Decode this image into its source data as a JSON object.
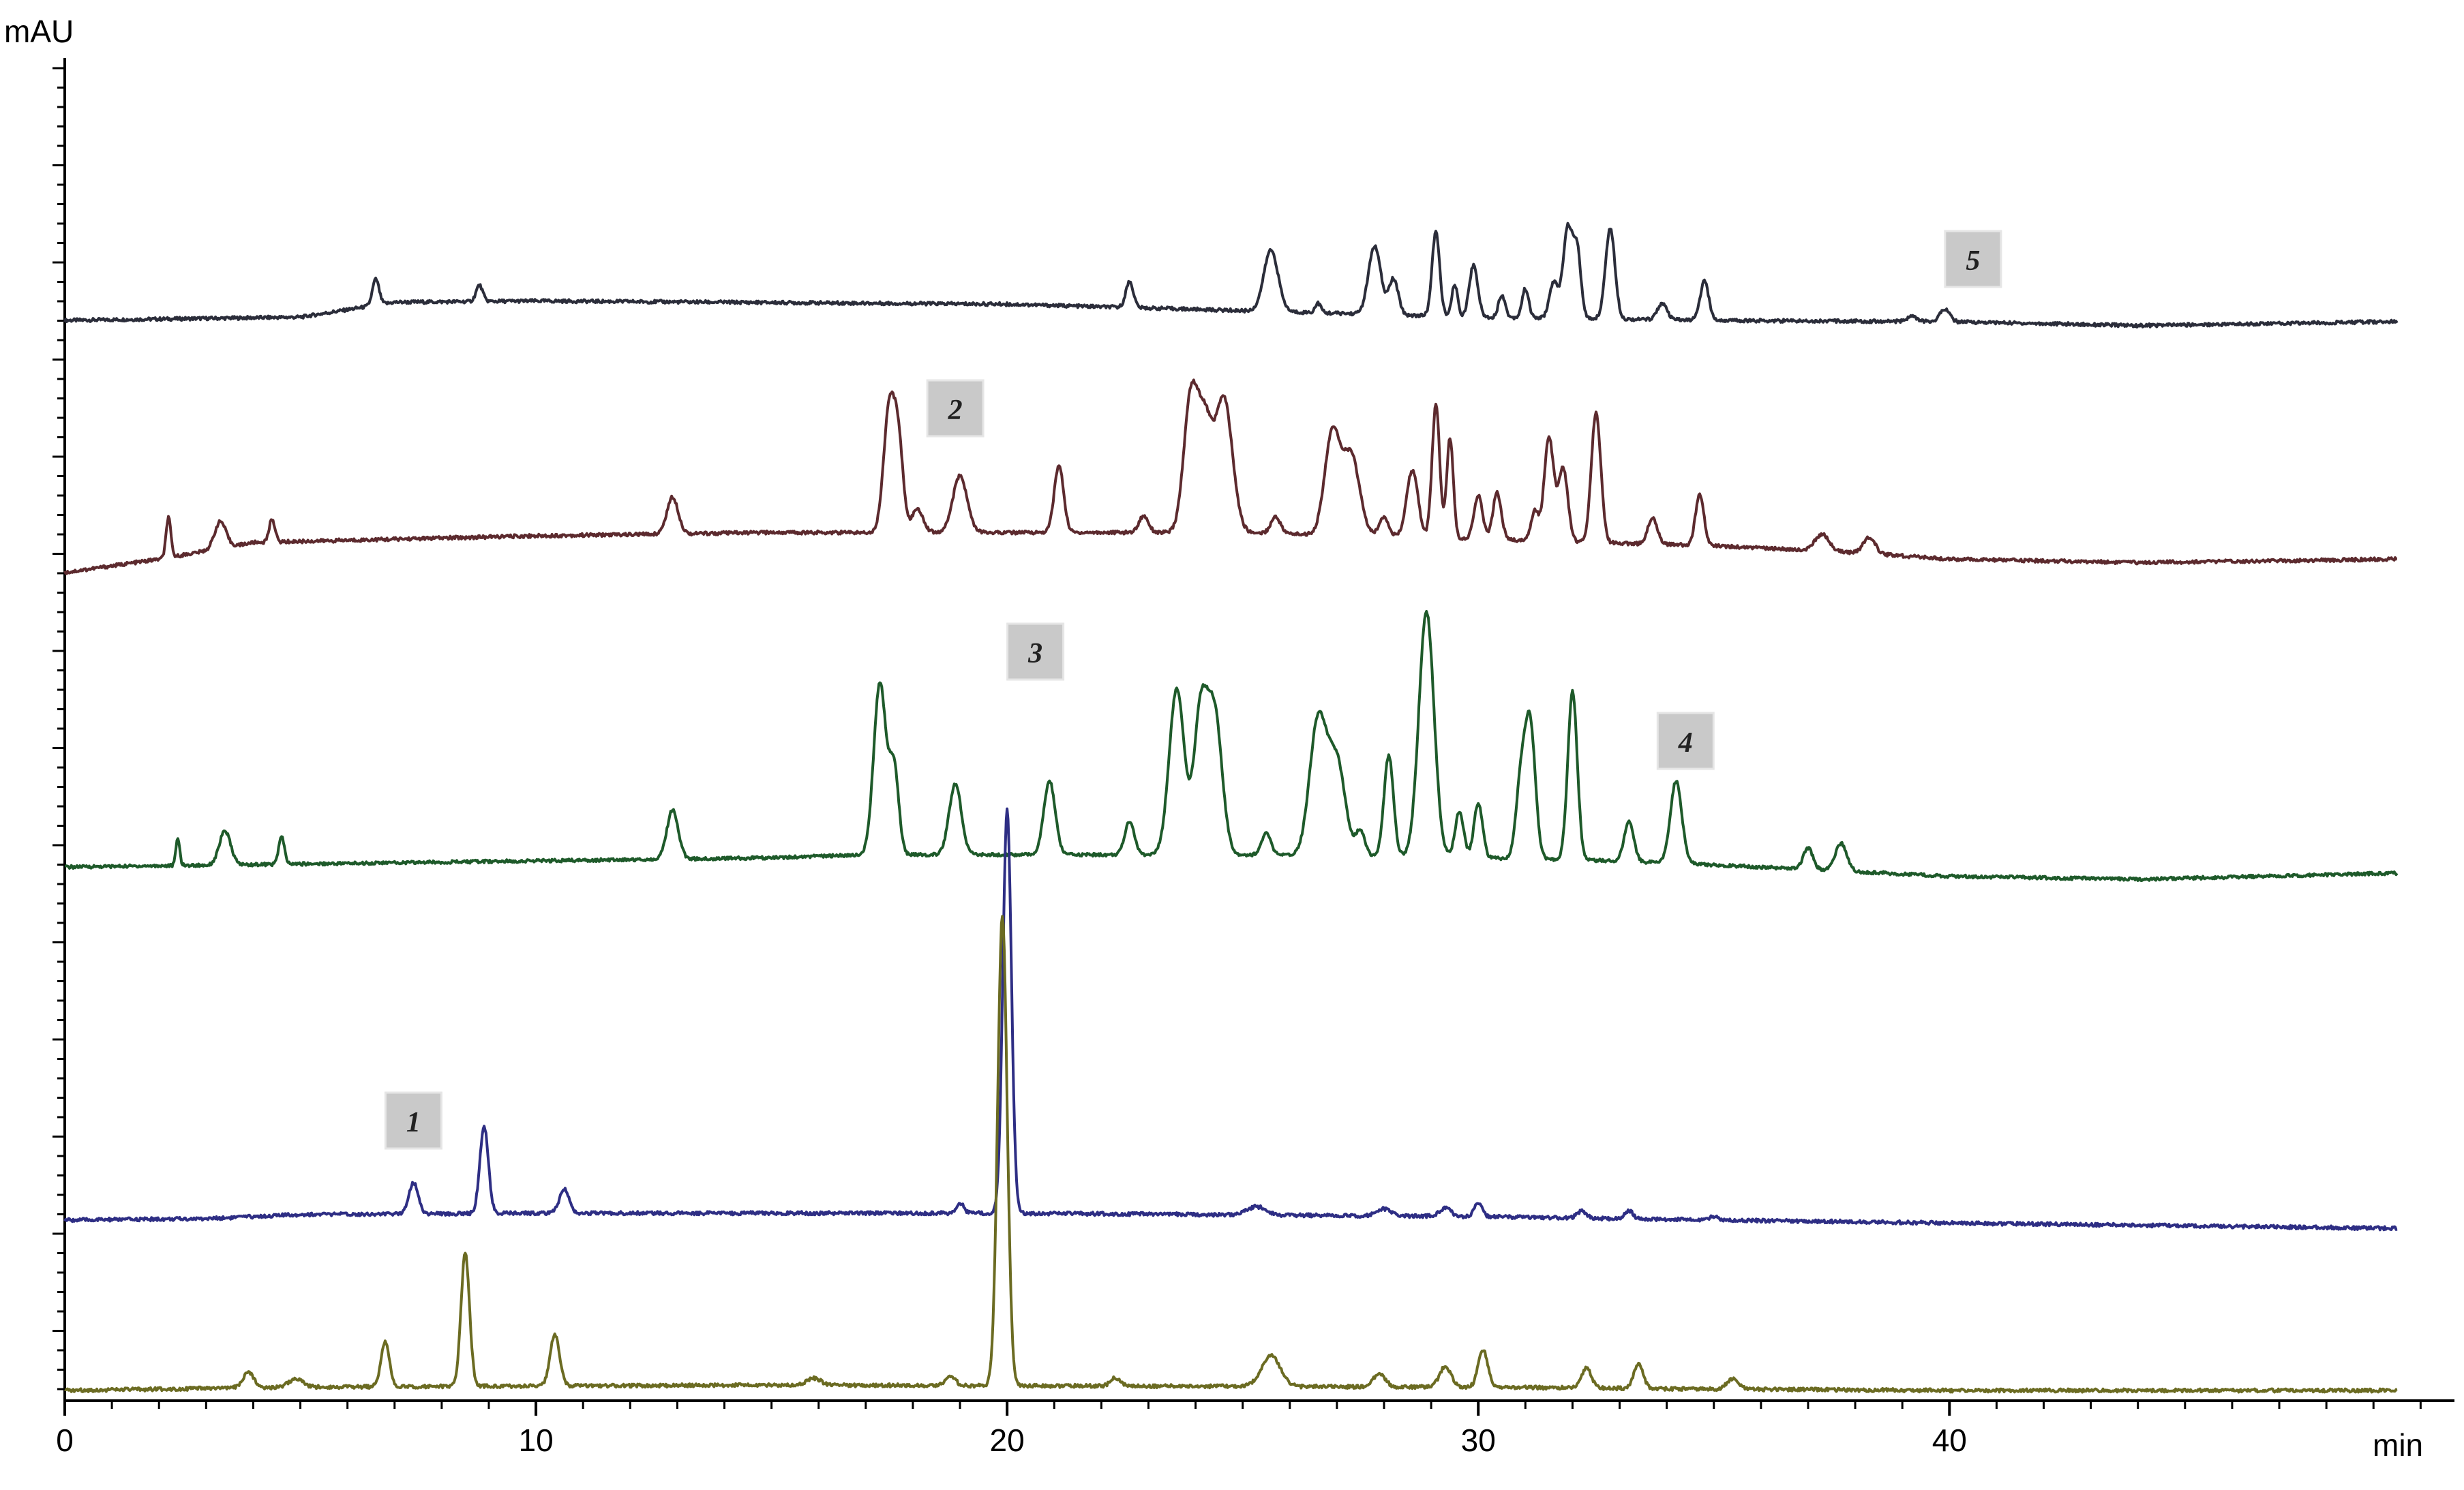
{
  "chart_data": {
    "type": "line",
    "title": "",
    "xlabel": "min",
    "ylabel": "mAU",
    "xlim": [
      0,
      50.4
    ],
    "x_ticks": [
      0,
      10,
      20,
      30,
      40
    ],
    "x_tick_labels": [
      "0",
      "10",
      "20",
      "30",
      "40"
    ],
    "grid": false,
    "legend": "none",
    "series": [
      {
        "color": "#2b2d3a",
        "baseline": [
          [
            0,
            0.0
          ],
          [
            5,
            0.05
          ],
          [
            7,
            0.28
          ],
          [
            10,
            0.3
          ],
          [
            20,
            0.25
          ],
          [
            25,
            0.15
          ],
          [
            30,
            0.05
          ],
          [
            35,
            0.0
          ],
          [
            40,
            -0.02
          ],
          [
            44,
            -0.08
          ],
          [
            49.5,
            -0.02
          ]
        ],
        "peaks": [
          [
            6.6,
            0.4,
            0.07
          ],
          [
            8.8,
            0.25,
            0.07
          ],
          [
            22.6,
            0.4,
            0.08
          ],
          [
            25.6,
            0.95,
            0.15
          ],
          [
            26.6,
            0.15,
            0.06
          ],
          [
            27.8,
            1.05,
            0.13
          ],
          [
            28.2,
            0.55,
            0.1
          ],
          [
            29.1,
            1.3,
            0.08
          ],
          [
            29.5,
            0.5,
            0.06
          ],
          [
            29.9,
            0.8,
            0.09
          ],
          [
            30.5,
            0.35,
            0.07
          ],
          [
            31.0,
            0.45,
            0.07
          ],
          [
            31.6,
            0.55,
            0.09
          ],
          [
            31.9,
            1.4,
            0.1
          ],
          [
            32.1,
            1.0,
            0.08
          ],
          [
            32.8,
            1.4,
            0.1
          ],
          [
            33.9,
            0.25,
            0.1
          ],
          [
            34.8,
            0.6,
            0.09
          ],
          [
            39.2,
            0.08,
            0.1
          ],
          [
            39.9,
            0.2,
            0.1
          ]
        ]
      },
      {
        "color": "#5c2a2e",
        "baseline": [
          [
            0,
            0.0
          ],
          [
            2,
            0.2
          ],
          [
            4,
            0.45
          ],
          [
            10,
            0.55
          ],
          [
            15,
            0.6
          ],
          [
            17,
            0.6
          ],
          [
            25,
            0.6
          ],
          [
            30,
            0.5
          ],
          [
            35,
            0.4
          ],
          [
            38,
            0.3
          ],
          [
            40,
            0.2
          ],
          [
            44,
            0.15
          ],
          [
            49.5,
            0.2
          ]
        ],
        "peaks": [
          [
            2.2,
            0.6,
            0.05
          ],
          [
            3.3,
            0.4,
            0.12
          ],
          [
            4.4,
            0.35,
            0.06
          ],
          [
            12.9,
            0.55,
            0.12
          ],
          [
            17.5,
            1.85,
            0.12
          ],
          [
            17.7,
            1.2,
            0.1
          ],
          [
            18.1,
            0.35,
            0.12
          ],
          [
            19.0,
            0.85,
            0.15
          ],
          [
            21.1,
            1.0,
            0.1
          ],
          [
            22.9,
            0.25,
            0.1
          ],
          [
            23.9,
            2.0,
            0.15
          ],
          [
            24.2,
            1.5,
            0.15
          ],
          [
            24.6,
            2.0,
            0.18
          ],
          [
            25.7,
            0.25,
            0.1
          ],
          [
            26.9,
            1.5,
            0.16
          ],
          [
            27.3,
            1.2,
            0.18
          ],
          [
            28.0,
            0.3,
            0.1
          ],
          [
            28.6,
            1.0,
            0.12
          ],
          [
            29.1,
            2.0,
            0.08
          ],
          [
            29.4,
            1.5,
            0.07
          ],
          [
            30.0,
            0.65,
            0.09
          ],
          [
            30.4,
            0.7,
            0.09
          ],
          [
            31.2,
            0.45,
            0.08
          ],
          [
            31.5,
            1.55,
            0.1
          ],
          [
            31.8,
            1.1,
            0.1
          ],
          [
            32.5,
            1.95,
            0.1
          ],
          [
            33.7,
            0.4,
            0.1
          ],
          [
            34.7,
            0.75,
            0.09
          ],
          [
            37.3,
            0.25,
            0.15
          ],
          [
            38.3,
            0.25,
            0.12
          ]
        ]
      },
      {
        "color": "#1e5a2a",
        "baseline": [
          [
            0,
            0.0
          ],
          [
            5,
            0.05
          ],
          [
            10,
            0.1
          ],
          [
            15,
            0.15
          ],
          [
            17,
            0.2
          ],
          [
            20,
            0.2
          ],
          [
            25,
            0.2
          ],
          [
            30,
            0.15
          ],
          [
            33,
            0.1
          ],
          [
            36,
            0.0
          ],
          [
            40,
            -0.15
          ],
          [
            44,
            -0.2
          ],
          [
            49.5,
            -0.1
          ]
        ],
        "peaks": [
          [
            2.4,
            0.45,
            0.04
          ],
          [
            3.4,
            0.55,
            0.12
          ],
          [
            4.6,
            0.45,
            0.06
          ],
          [
            12.9,
            0.8,
            0.12
          ],
          [
            17.3,
            2.8,
            0.13
          ],
          [
            17.6,
            1.4,
            0.1
          ],
          [
            18.9,
            1.15,
            0.13
          ],
          [
            20.9,
            1.2,
            0.12
          ],
          [
            22.6,
            0.55,
            0.1
          ],
          [
            23.6,
            2.7,
            0.16
          ],
          [
            24.1,
            2.2,
            0.14
          ],
          [
            24.4,
            2.3,
            0.16
          ],
          [
            25.5,
            0.35,
            0.1
          ],
          [
            26.6,
            2.2,
            0.18
          ],
          [
            27.0,
            1.5,
            0.18
          ],
          [
            27.5,
            0.4,
            0.1
          ],
          [
            28.1,
            1.65,
            0.1
          ],
          [
            28.9,
            4.0,
            0.16
          ],
          [
            29.6,
            0.75,
            0.09
          ],
          [
            30.0,
            0.9,
            0.09
          ],
          [
            30.9,
            1.2,
            0.1
          ],
          [
            31.1,
            2.2,
            0.11
          ],
          [
            32.0,
            2.75,
            0.1
          ],
          [
            33.2,
            0.65,
            0.1
          ],
          [
            34.2,
            1.35,
            0.12
          ],
          [
            37.0,
            0.35,
            0.1
          ],
          [
            37.7,
            0.45,
            0.12
          ]
        ]
      },
      {
        "color": "#2e2e84",
        "baseline": [
          [
            0,
            0.0
          ],
          [
            3,
            0.02
          ],
          [
            5,
            0.08
          ],
          [
            10,
            0.1
          ],
          [
            20,
            0.1
          ],
          [
            30,
            0.05
          ],
          [
            35,
            0.0
          ],
          [
            49.5,
            -0.12
          ]
        ],
        "peaks": [
          [
            7.4,
            0.45,
            0.1
          ],
          [
            8.9,
            1.25,
            0.09
          ],
          [
            10.6,
            0.35,
            0.1
          ],
          [
            19.0,
            0.15,
            0.08
          ],
          [
            20.0,
            5.8,
            0.09
          ],
          [
            25.3,
            0.12,
            0.2
          ],
          [
            28.0,
            0.1,
            0.15
          ],
          [
            29.3,
            0.12,
            0.12
          ],
          [
            30.0,
            0.2,
            0.08
          ],
          [
            32.2,
            0.1,
            0.1
          ],
          [
            33.2,
            0.12,
            0.08
          ],
          [
            35.0,
            0.05,
            0.1
          ]
        ]
      },
      {
        "color": "#6b6b22",
        "baseline": [
          [
            0,
            0.0
          ],
          [
            5,
            0.05
          ],
          [
            15,
            0.08
          ],
          [
            30,
            0.05
          ],
          [
            35,
            0.02
          ],
          [
            40,
            0.0
          ],
          [
            49.5,
            0.0
          ]
        ],
        "peaks": [
          [
            3.9,
            0.22,
            0.12
          ],
          [
            4.9,
            0.12,
            0.15
          ],
          [
            6.8,
            0.65,
            0.09
          ],
          [
            8.5,
            1.95,
            0.09
          ],
          [
            10.4,
            0.75,
            0.1
          ],
          [
            15.9,
            0.1,
            0.15
          ],
          [
            18.8,
            0.15,
            0.1
          ],
          [
            19.9,
            6.9,
            0.1
          ],
          [
            22.3,
            0.12,
            0.1
          ],
          [
            25.6,
            0.45,
            0.2
          ],
          [
            27.9,
            0.2,
            0.12
          ],
          [
            29.3,
            0.3,
            0.12
          ],
          [
            30.1,
            0.55,
            0.1
          ],
          [
            32.3,
            0.3,
            0.1
          ],
          [
            33.4,
            0.35,
            0.1
          ],
          [
            35.4,
            0.15,
            0.12
          ]
        ]
      }
    ],
    "annotations": [
      {
        "label": "1",
        "x": 7.4
      },
      {
        "label": "2",
        "x": 18.9
      },
      {
        "label": "3",
        "x": 20.6
      },
      {
        "label": "4",
        "x": 34.4
      },
      {
        "label": "5",
        "x": 40.5
      }
    ]
  }
}
